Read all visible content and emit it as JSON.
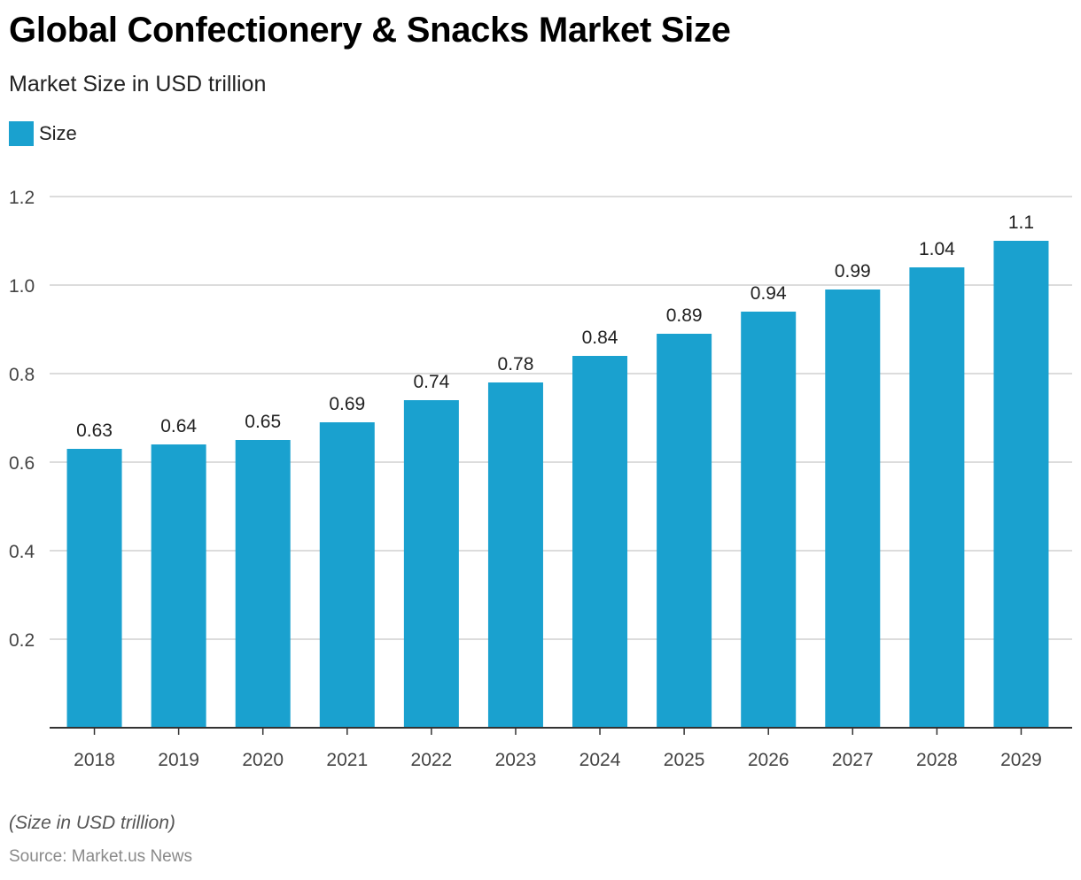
{
  "title": "Global Confectionery & Snacks Market Size",
  "subtitle": "Market Size in USD trillion",
  "footnote": "(Size in USD trillion)",
  "source": "Source: Market.us News",
  "bar_color": "#1aa1cf",
  "chart_data": {
    "type": "bar",
    "categories": [
      "2018",
      "2019",
      "2020",
      "2021",
      "2022",
      "2023",
      "2024",
      "2025",
      "2026",
      "2027",
      "2028",
      "2029"
    ],
    "series": [
      {
        "name": "Size",
        "values": [
          0.63,
          0.64,
          0.65,
          0.69,
          0.74,
          0.78,
          0.84,
          0.89,
          0.94,
          0.99,
          1.04,
          1.1
        ],
        "labels": [
          "0.63",
          "0.64",
          "0.65",
          "0.69",
          "0.74",
          "0.78",
          "0.84",
          "0.89",
          "0.94",
          "0.99",
          "1.04",
          "1.1"
        ]
      }
    ],
    "ylim": [
      0,
      1.2
    ],
    "yticks": [
      "0.2",
      "0.4",
      "0.6",
      "0.8",
      "1.0",
      "1.2"
    ],
    "ytick_values": [
      0.2,
      0.4,
      0.6,
      0.8,
      1.0,
      1.2
    ],
    "xlabel": "",
    "ylabel": "",
    "grid": true,
    "legend_position": "top-left"
  }
}
